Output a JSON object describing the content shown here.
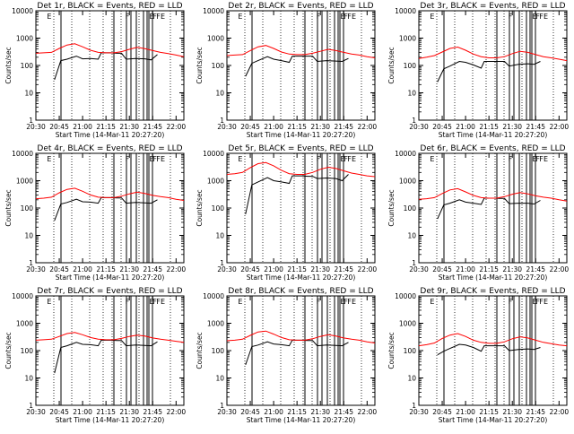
{
  "figure": {
    "background": "#ffffff",
    "axis_color": "#000000",
    "events_color": "#000000",
    "lld_color": "#ff0000",
    "x_tick_labels": [
      "20:30",
      "20:45",
      "21:00",
      "21:15",
      "21:30",
      "21:45",
      "22:00"
    ],
    "y_tick_labels": [
      "1",
      "10",
      "100",
      "1000",
      "10000"
    ],
    "ylabel": "Counts/sec",
    "xlabel": "Start Time (14-Mar-11 20:27:20)",
    "markers": [
      "E",
      "F",
      "E",
      "F",
      "F",
      "E"
    ]
  },
  "chart_data": [
    {
      "type": "line",
      "title": "Det 1r, BLACK = Events, RED = LLD",
      "xlabel": "Start Time (14-Mar-11 20:27:20)",
      "ylabel": "Counts/sec",
      "y_scale": "log",
      "ylim": [
        1,
        10000
      ],
      "xlim": [
        "20:30",
        "22:05"
      ],
      "x_ticks": [
        "20:30",
        "20:45",
        "21:00",
        "21:15",
        "21:30",
        "21:45",
        "22:00"
      ],
      "series": [
        {
          "name": "Events",
          "color": "#000000",
          "x": [
            "20:42",
            "20:46",
            "20:50",
            "20:56",
            "21:00",
            "21:05",
            "21:10",
            "21:12",
            "21:18",
            "21:22",
            "21:25",
            "21:28",
            "21:34",
            "21:40",
            "21:44",
            "21:48"
          ],
          "values": [
            30,
            150,
            170,
            220,
            175,
            180,
            170,
            290,
            290,
            280,
            280,
            170,
            180,
            175,
            160,
            250
          ]
        },
        {
          "name": "LLD",
          "color": "#ff0000",
          "x": [
            "20:30",
            "20:35",
            "20:40",
            "20:45",
            "20:50",
            "20:55",
            "21:00",
            "21:05",
            "21:10",
            "21:15",
            "21:20",
            "21:25",
            "21:30",
            "21:35",
            "21:40",
            "21:45",
            "21:50",
            "21:55",
            "22:00",
            "22:05"
          ],
          "values": [
            280,
            290,
            300,
            420,
            560,
            620,
            480,
            360,
            300,
            290,
            290,
            320,
            390,
            460,
            410,
            350,
            300,
            270,
            240,
            210
          ]
        }
      ]
    },
    {
      "type": "line",
      "title": "Det 2r, BLACK = Events, RED = LLD",
      "xlabel": "Start Time (14-Mar-11 20:27:20)",
      "ylabel": "Counts/sec",
      "y_scale": "log",
      "ylim": [
        1,
        10000
      ],
      "xlim": [
        "20:30",
        "22:05"
      ],
      "x_ticks": [
        "20:30",
        "20:45",
        "21:00",
        "21:15",
        "21:30",
        "21:45",
        "22:00"
      ],
      "series": [
        {
          "name": "Events",
          "color": "#000000",
          "x": [
            "20:42",
            "20:46",
            "20:50",
            "20:56",
            "21:00",
            "21:05",
            "21:10",
            "21:12",
            "21:18",
            "21:22",
            "21:25",
            "21:28",
            "21:34",
            "21:40",
            "21:44",
            "21:48"
          ],
          "values": [
            40,
            120,
            150,
            210,
            170,
            150,
            130,
            220,
            220,
            220,
            220,
            140,
            150,
            145,
            140,
            180
          ]
        },
        {
          "name": "LLD",
          "color": "#ff0000",
          "x": [
            "20:30",
            "20:35",
            "20:40",
            "20:45",
            "20:50",
            "20:55",
            "21:00",
            "21:05",
            "21:10",
            "21:15",
            "21:20",
            "21:25",
            "21:30",
            "21:35",
            "21:40",
            "21:45",
            "21:50",
            "21:55",
            "22:00",
            "22:05"
          ],
          "values": [
            230,
            240,
            250,
            350,
            480,
            540,
            420,
            310,
            260,
            250,
            250,
            280,
            330,
            390,
            350,
            300,
            260,
            240,
            210,
            190
          ]
        }
      ]
    },
    {
      "type": "line",
      "title": "Det 3r, BLACK = Events, RED = LLD",
      "xlabel": "Start Time (14-Mar-11 20:27:20)",
      "ylabel": "Counts/sec",
      "y_scale": "log",
      "ylim": [
        1,
        10000
      ],
      "xlim": [
        "20:30",
        "22:05"
      ],
      "x_ticks": [
        "20:30",
        "20:45",
        "21:00",
        "21:15",
        "21:30",
        "21:45",
        "22:00"
      ],
      "series": [
        {
          "name": "Events",
          "color": "#000000",
          "x": [
            "20:42",
            "20:46",
            "20:50",
            "20:56",
            "21:00",
            "21:05",
            "21:10",
            "21:12",
            "21:18",
            "21:22",
            "21:25",
            "21:28",
            "21:34",
            "21:40",
            "21:44",
            "21:48"
          ],
          "values": [
            25,
            75,
            95,
            140,
            130,
            105,
            80,
            140,
            140,
            140,
            140,
            95,
            110,
            115,
            110,
            140
          ]
        },
        {
          "name": "LLD",
          "color": "#ff0000",
          "x": [
            "20:30",
            "20:35",
            "20:40",
            "20:45",
            "20:50",
            "20:55",
            "21:00",
            "21:05",
            "21:10",
            "21:15",
            "21:20",
            "21:25",
            "21:30",
            "21:35",
            "21:40",
            "21:45",
            "21:50",
            "21:55",
            "22:00",
            "22:05"
          ],
          "values": [
            180,
            200,
            230,
            310,
            420,
            470,
            360,
            260,
            210,
            190,
            190,
            210,
            270,
            330,
            300,
            250,
            210,
            190,
            170,
            150
          ]
        }
      ]
    },
    {
      "type": "line",
      "title": "Det 4r, BLACK = Events, RED = LLD",
      "xlabel": "Start Time (14-Mar-11 20:27:20)",
      "ylabel": "Counts/sec",
      "y_scale": "log",
      "ylim": [
        1,
        10000
      ],
      "xlim": [
        "20:30",
        "22:05"
      ],
      "x_ticks": [
        "20:30",
        "20:45",
        "21:00",
        "21:15",
        "21:30",
        "21:45",
        "22:00"
      ],
      "series": [
        {
          "name": "Events",
          "color": "#000000",
          "x": [
            "20:42",
            "20:46",
            "20:50",
            "20:56",
            "21:00",
            "21:05",
            "21:10",
            "21:12",
            "21:18",
            "21:22",
            "21:25",
            "21:28",
            "21:34",
            "21:40",
            "21:44",
            "21:48"
          ],
          "values": [
            35,
            140,
            160,
            210,
            170,
            165,
            150,
            240,
            240,
            235,
            235,
            150,
            160,
            155,
            150,
            200
          ]
        },
        {
          "name": "LLD",
          "color": "#ff0000",
          "x": [
            "20:30",
            "20:35",
            "20:40",
            "20:45",
            "20:50",
            "20:55",
            "21:00",
            "21:05",
            "21:10",
            "21:15",
            "21:20",
            "21:25",
            "21:30",
            "21:35",
            "21:40",
            "21:45",
            "21:50",
            "21:55",
            "22:00",
            "22:05"
          ],
          "values": [
            220,
            230,
            250,
            360,
            480,
            530,
            410,
            300,
            250,
            240,
            240,
            270,
            330,
            380,
            340,
            290,
            260,
            240,
            210,
            190
          ]
        }
      ]
    },
    {
      "type": "line",
      "title": "Det 5r, BLACK = Events, RED = LLD",
      "xlabel": "Start Time (14-Mar-11 20:27:20)",
      "ylabel": "Counts/sec",
      "y_scale": "log",
      "ylim": [
        1,
        10000
      ],
      "xlim": [
        "20:30",
        "22:05"
      ],
      "x_ticks": [
        "20:30",
        "20:45",
        "21:00",
        "21:15",
        "21:30",
        "21:45",
        "22:00"
      ],
      "series": [
        {
          "name": "Events",
          "color": "#000000",
          "x": [
            "20:42",
            "20:46",
            "20:50",
            "20:56",
            "21:00",
            "21:05",
            "21:10",
            "21:12",
            "21:18",
            "21:22",
            "21:25",
            "21:28",
            "21:34",
            "21:40",
            "21:44",
            "21:48"
          ],
          "values": [
            60,
            700,
            900,
            1300,
            1000,
            900,
            800,
            1500,
            1500,
            1450,
            1450,
            1200,
            1250,
            1200,
            1000,
            1700
          ]
        },
        {
          "name": "LLD",
          "color": "#ff0000",
          "x": [
            "20:30",
            "20:35",
            "20:40",
            "20:45",
            "20:50",
            "20:55",
            "21:00",
            "21:05",
            "21:10",
            "21:15",
            "21:20",
            "21:25",
            "21:30",
            "21:35",
            "21:40",
            "21:45",
            "21:50",
            "21:55",
            "22:00",
            "22:05"
          ],
          "values": [
            1700,
            1800,
            2000,
            3000,
            4200,
            4600,
            3500,
            2400,
            1800,
            1700,
            1700,
            2000,
            2600,
            3100,
            2800,
            2300,
            1900,
            1700,
            1500,
            1400
          ]
        }
      ]
    },
    {
      "type": "line",
      "title": "Det 6r, BLACK = Events, RED = LLD",
      "xlabel": "Start Time (14-Mar-11 20:27:20)",
      "ylabel": "Counts/sec",
      "y_scale": "log",
      "ylim": [
        1,
        10000
      ],
      "xlim": [
        "20:30",
        "22:05"
      ],
      "x_ticks": [
        "20:30",
        "20:45",
        "21:00",
        "21:15",
        "21:30",
        "21:45",
        "22:00"
      ],
      "series": [
        {
          "name": "Events",
          "color": "#000000",
          "x": [
            "20:42",
            "20:46",
            "20:50",
            "20:56",
            "21:00",
            "21:05",
            "21:10",
            "21:12",
            "21:18",
            "21:22",
            "21:25",
            "21:28",
            "21:34",
            "21:40",
            "21:44",
            "21:48"
          ],
          "values": [
            40,
            130,
            150,
            200,
            165,
            150,
            135,
            230,
            230,
            225,
            225,
            145,
            150,
            150,
            140,
            190
          ]
        },
        {
          "name": "LLD",
          "color": "#ff0000",
          "x": [
            "20:30",
            "20:35",
            "20:40",
            "20:45",
            "20:50",
            "20:55",
            "21:00",
            "21:05",
            "21:10",
            "21:15",
            "21:20",
            "21:25",
            "21:30",
            "21:35",
            "21:40",
            "21:45",
            "21:50",
            "21:55",
            "22:00",
            "22:05"
          ],
          "values": [
            210,
            220,
            240,
            340,
            460,
            510,
            390,
            290,
            240,
            230,
            230,
            260,
            320,
            370,
            330,
            280,
            250,
            230,
            200,
            180
          ]
        }
      ]
    },
    {
      "type": "line",
      "title": "Det 7r, BLACK = Events, RED = LLD",
      "xlabel": "Start Time (14-Mar-11 20:27:20)",
      "ylabel": "Counts/sec",
      "y_scale": "log",
      "ylim": [
        1,
        10000
      ],
      "xlim": [
        "20:30",
        "22:05"
      ],
      "x_ticks": [
        "20:30",
        "20:45",
        "21:00",
        "21:15",
        "21:30",
        "21:45",
        "22:00"
      ],
      "series": [
        {
          "name": "Events",
          "color": "#000000",
          "x": [
            "20:42",
            "20:46",
            "20:50",
            "20:56",
            "21:00",
            "21:05",
            "21:10",
            "21:12",
            "21:18",
            "21:22",
            "21:25",
            "21:28",
            "21:34",
            "21:40",
            "21:44",
            "21:48"
          ],
          "values": [
            15,
            130,
            150,
            200,
            170,
            165,
            150,
            240,
            240,
            235,
            235,
            150,
            160,
            155,
            150,
            210
          ]
        },
        {
          "name": "LLD",
          "color": "#ff0000",
          "x": [
            "20:30",
            "20:35",
            "20:40",
            "20:45",
            "20:50",
            "20:55",
            "21:00",
            "21:05",
            "21:10",
            "21:15",
            "21:20",
            "21:25",
            "21:30",
            "21:35",
            "21:40",
            "21:45",
            "21:50",
            "21:55",
            "22:00",
            "22:05"
          ],
          "values": [
            240,
            250,
            260,
            330,
            420,
            460,
            380,
            300,
            260,
            250,
            250,
            280,
            330,
            370,
            340,
            290,
            260,
            240,
            220,
            200
          ]
        }
      ]
    },
    {
      "type": "line",
      "title": "Det 8r, BLACK = Events, RED = LLD",
      "xlabel": "Start Time (14-Mar-11 20:27:20)",
      "ylabel": "Counts/sec",
      "y_scale": "log",
      "ylim": [
        1,
        10000
      ],
      "xlim": [
        "20:30",
        "22:05"
      ],
      "x_ticks": [
        "20:30",
        "20:45",
        "21:00",
        "21:15",
        "21:30",
        "21:45",
        "22:00"
      ],
      "series": [
        {
          "name": "Events",
          "color": "#000000",
          "x": [
            "20:42",
            "20:46",
            "20:50",
            "20:56",
            "21:00",
            "21:05",
            "21:10",
            "21:12",
            "21:18",
            "21:22",
            "21:25",
            "21:28",
            "21:34",
            "21:40",
            "21:44",
            "21:48"
          ],
          "values": [
            30,
            140,
            160,
            210,
            175,
            165,
            150,
            240,
            240,
            235,
            235,
            150,
            160,
            155,
            150,
            200
          ]
        },
        {
          "name": "LLD",
          "color": "#ff0000",
          "x": [
            "20:30",
            "20:35",
            "20:40",
            "20:45",
            "20:50",
            "20:55",
            "21:00",
            "21:05",
            "21:10",
            "21:15",
            "21:20",
            "21:25",
            "21:30",
            "21:35",
            "21:40",
            "21:45",
            "21:50",
            "21:55",
            "22:00",
            "22:05"
          ],
          "values": [
            230,
            240,
            260,
            360,
            480,
            520,
            400,
            300,
            250,
            240,
            240,
            270,
            330,
            380,
            340,
            290,
            260,
            240,
            210,
            190
          ]
        }
      ]
    },
    {
      "type": "line",
      "title": "Det 9r, BLACK = Events, RED = LLD",
      "xlabel": "Start Time (14-Mar-11 20:27:20)",
      "ylabel": "Counts/sec",
      "y_scale": "log",
      "ylim": [
        1,
        10000
      ],
      "xlim": [
        "20:30",
        "22:05"
      ],
      "x_ticks": [
        "20:30",
        "20:45",
        "21:00",
        "21:15",
        "21:30",
        "21:45",
        "22:00"
      ],
      "series": [
        {
          "name": "Events",
          "color": "#000000",
          "x": [
            "20:42",
            "20:46",
            "20:50",
            "20:56",
            "21:00",
            "21:05",
            "21:10",
            "21:12",
            "21:18",
            "21:22",
            "21:25",
            "21:28",
            "21:34",
            "21:40",
            "21:44",
            "21:48"
          ],
          "values": [
            70,
            95,
            120,
            170,
            160,
            130,
            95,
            150,
            150,
            150,
            150,
            100,
            110,
            115,
            110,
            130
          ]
        },
        {
          "name": "LLD",
          "color": "#ff0000",
          "x": [
            "20:30",
            "20:35",
            "20:40",
            "20:45",
            "20:50",
            "20:55",
            "21:00",
            "21:05",
            "21:10",
            "21:15",
            "21:20",
            "21:25",
            "21:30",
            "21:35",
            "21:40",
            "21:45",
            "21:50",
            "21:55",
            "22:00",
            "22:05"
          ],
          "values": [
            150,
            165,
            190,
            280,
            370,
            420,
            330,
            240,
            200,
            185,
            185,
            210,
            270,
            320,
            290,
            240,
            200,
            180,
            160,
            150
          ]
        }
      ]
    }
  ]
}
